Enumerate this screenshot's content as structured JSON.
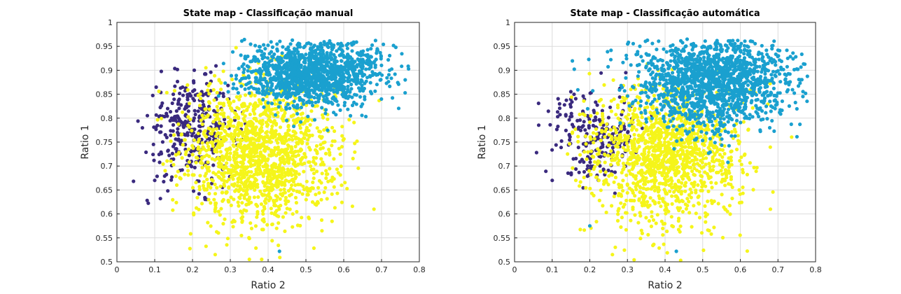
{
  "figure": {
    "background": "#ffffff",
    "palette": {
      "dark_purple": "#3a2a7e",
      "teal_blue": "#1aa0cf",
      "yellow": "#f5f51a"
    }
  },
  "chart_data": [
    {
      "type": "scatter",
      "title": "State map - Classificação manual",
      "xlabel": "Ratio 2",
      "ylabel": "Ratio 1",
      "xlim": [
        0,
        0.8
      ],
      "ylim": [
        0.5,
        1.0
      ],
      "xticks": [
        "0",
        "0.1",
        "0.2",
        "0.3",
        "0.4",
        "0.5",
        "0.6",
        "0.7",
        "0.8"
      ],
      "yticks": [
        "0.5",
        "0.55",
        "0.6",
        "0.65",
        "0.7",
        "0.75",
        "0.8",
        "0.85",
        "0.9",
        "0.95",
        "1"
      ],
      "grid": true,
      "clusters": [
        {
          "color": "#3a2a7e",
          "count": 320,
          "center": [
            0.2,
            0.78
          ],
          "spread": [
            0.06,
            0.055
          ],
          "range": [
            [
              0.02,
              0.42
            ],
            [
              0.62,
              0.91
            ]
          ]
        },
        {
          "color": "#f5f51a",
          "count": 1500,
          "center": [
            0.38,
            0.73
          ],
          "spread": [
            0.1,
            0.075
          ],
          "range": [
            [
              0.1,
              0.78
            ],
            [
              0.5,
              0.95
            ]
          ]
        },
        {
          "color": "#1aa0cf",
          "count": 1300,
          "center": [
            0.52,
            0.895
          ],
          "spread": [
            0.09,
            0.035
          ],
          "range": [
            [
              0.24,
              0.78
            ],
            [
              0.75,
              0.965
            ]
          ]
        }
      ],
      "outliers": [
        {
          "color": "#1aa0cf",
          "x": 0.43,
          "y": 0.522
        },
        {
          "color": "#f5f51a",
          "x": 0.26,
          "y": 0.515
        },
        {
          "color": "#f5f51a",
          "x": 0.68,
          "y": 0.61
        },
        {
          "color": "#3a2a7e",
          "x": 0.115,
          "y": 0.632
        },
        {
          "color": "#3a2a7e",
          "x": 0.1,
          "y": 0.67
        }
      ]
    },
    {
      "type": "scatter",
      "title": "State map - Classificação automática",
      "xlabel": "Ratio 2",
      "ylabel": "Ratio 1",
      "xlim": [
        0,
        0.8
      ],
      "ylim": [
        0.5,
        1.0
      ],
      "xticks": [
        "0",
        "0.1",
        "0.2",
        "0.3",
        "0.4",
        "0.5",
        "0.6",
        "0.7",
        "0.8"
      ],
      "yticks": [
        "0.5",
        "0.55",
        "0.6",
        "0.65",
        "0.7",
        "0.75",
        "0.8",
        "0.85",
        "0.9",
        "0.95",
        "1"
      ],
      "grid": true,
      "clusters": [
        {
          "color": "#3a2a7e",
          "count": 220,
          "center": [
            0.21,
            0.77
          ],
          "spread": [
            0.06,
            0.05
          ],
          "range": [
            [
              0.02,
              0.45
            ],
            [
              0.62,
              0.91
            ]
          ]
        },
        {
          "color": "#f5f51a",
          "count": 1350,
          "center": [
            0.4,
            0.72
          ],
          "spread": [
            0.1,
            0.07
          ],
          "range": [
            [
              0.14,
              0.78
            ],
            [
              0.5,
              0.93
            ]
          ]
        },
        {
          "color": "#1aa0cf",
          "count": 1500,
          "center": [
            0.53,
            0.88
          ],
          "spread": [
            0.1,
            0.05
          ],
          "range": [
            [
              0.03,
              0.78
            ],
            [
              0.55,
              0.965
            ]
          ]
        }
      ],
      "outliers": [
        {
          "color": "#1aa0cf",
          "x": 0.43,
          "y": 0.522
        },
        {
          "color": "#f5f51a",
          "x": 0.26,
          "y": 0.515
        },
        {
          "color": "#f5f51a",
          "x": 0.68,
          "y": 0.61
        },
        {
          "color": "#1aa0cf",
          "x": 0.2,
          "y": 0.575
        },
        {
          "color": "#3a2a7e",
          "x": 0.1,
          "y": 0.67
        }
      ]
    }
  ]
}
